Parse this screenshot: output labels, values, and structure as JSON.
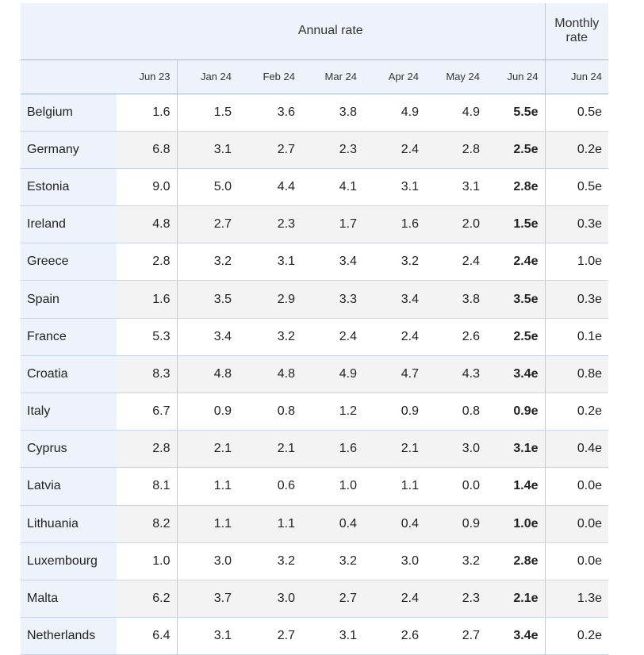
{
  "header": {
    "annual_group": "Annual rate",
    "monthly_group": "Monthly rate",
    "columns": [
      "Jun 23",
      "Jan 24",
      "Feb 24",
      "Mar 24",
      "Apr 24",
      "May 24",
      "Jun 24",
      "Jun 24"
    ]
  },
  "rows": [
    {
      "country": "Belgium",
      "values": [
        "1.6",
        "1.5",
        "3.6",
        "3.8",
        "4.9",
        "4.9",
        "5.5e",
        "0.5e"
      ]
    },
    {
      "country": "Germany",
      "values": [
        "6.8",
        "3.1",
        "2.7",
        "2.3",
        "2.4",
        "2.8",
        "2.5e",
        "0.2e"
      ]
    },
    {
      "country": "Estonia",
      "values": [
        "9.0",
        "5.0",
        "4.4",
        "4.1",
        "3.1",
        "3.1",
        "2.8e",
        "0.5e"
      ]
    },
    {
      "country": "Ireland",
      "values": [
        "4.8",
        "2.7",
        "2.3",
        "1.7",
        "1.6",
        "2.0",
        "1.5e",
        "0.3e"
      ]
    },
    {
      "country": "Greece",
      "values": [
        "2.8",
        "3.2",
        "3.1",
        "3.4",
        "3.2",
        "2.4",
        "2.4e",
        "1.0e"
      ]
    },
    {
      "country": "Spain",
      "values": [
        "1.6",
        "3.5",
        "2.9",
        "3.3",
        "3.4",
        "3.8",
        "3.5e",
        "0.3e"
      ]
    },
    {
      "country": "France",
      "values": [
        "5.3",
        "3.4",
        "3.2",
        "2.4",
        "2.4",
        "2.6",
        "2.5e",
        "0.1e"
      ]
    },
    {
      "country": "Croatia",
      "values": [
        "8.3",
        "4.8",
        "4.8",
        "4.9",
        "4.7",
        "4.3",
        "3.4e",
        "0.8e"
      ]
    },
    {
      "country": "Italy",
      "values": [
        "6.7",
        "0.9",
        "0.8",
        "1.2",
        "0.9",
        "0.8",
        "0.9e",
        "0.2e"
      ]
    },
    {
      "country": "Cyprus",
      "values": [
        "2.8",
        "2.1",
        "2.1",
        "1.6",
        "2.1",
        "3.0",
        "3.1e",
        "0.4e"
      ]
    },
    {
      "country": "Latvia",
      "values": [
        "8.1",
        "1.1",
        "0.6",
        "1.0",
        "1.1",
        "0.0",
        "1.4e",
        "0.0e"
      ]
    },
    {
      "country": "Lithuania",
      "values": [
        "8.2",
        "1.1",
        "1.1",
        "0.4",
        "0.4",
        "0.9",
        "1.0e",
        "0.0e"
      ]
    },
    {
      "country": "Luxembourg",
      "values": [
        "1.0",
        "3.0",
        "3.2",
        "3.2",
        "3.0",
        "3.2",
        "2.8e",
        "0.0e"
      ]
    },
    {
      "country": "Malta",
      "values": [
        "6.2",
        "3.7",
        "3.0",
        "2.7",
        "2.4",
        "2.3",
        "2.1e",
        "1.3e"
      ]
    },
    {
      "country": "Netherlands",
      "values": [
        "6.4",
        "3.1",
        "2.7",
        "3.1",
        "2.6",
        "2.7",
        "3.4e",
        "0.2e"
      ]
    }
  ]
}
